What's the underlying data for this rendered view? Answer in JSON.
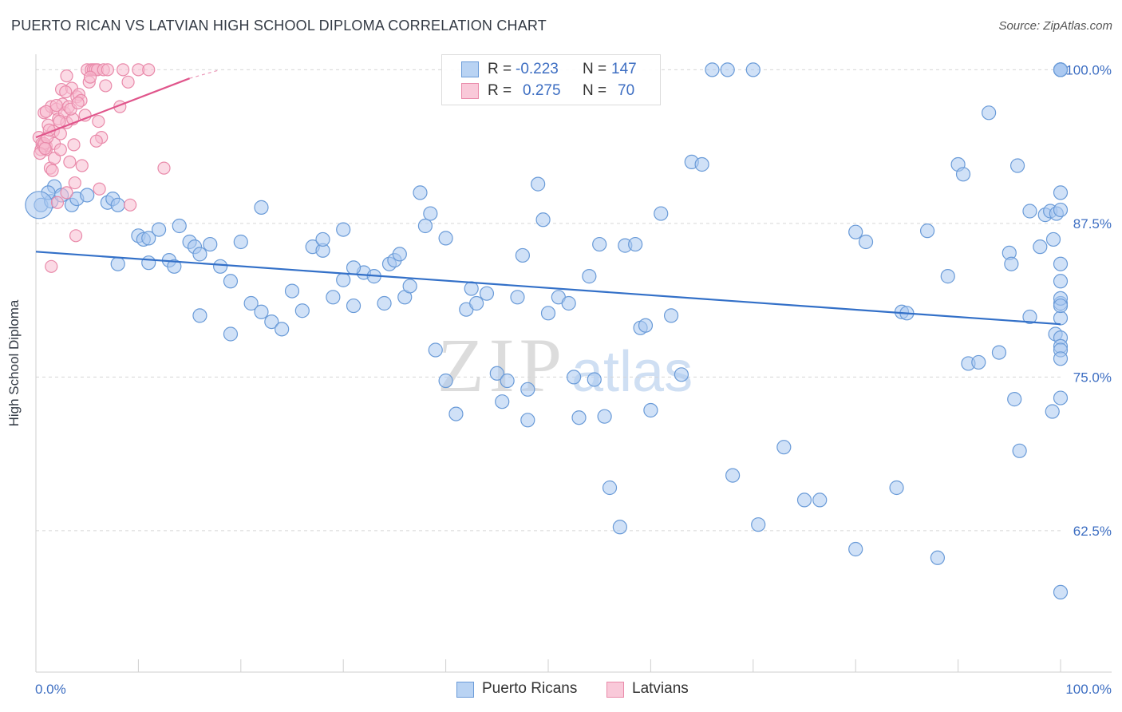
{
  "title": "PUERTO RICAN VS LATVIAN HIGH SCHOOL DIPLOMA CORRELATION CHART",
  "source": "Source: ZipAtlas.com",
  "watermark": {
    "zip": "ZIP",
    "atlas": "atlas"
  },
  "legend": {
    "rows": [
      {
        "r_label": "R =",
        "r_value": "-0.223",
        "n_label": "N =",
        "n_value": "147",
        "color": "#a9c8f0",
        "stroke": "#6a9bd8"
      },
      {
        "r_label": "R =",
        "r_value": "0.275",
        "n_label": "N =",
        "n_value": "70",
        "color": "#f7bcd0",
        "stroke": "#e98aaa"
      }
    ]
  },
  "bottom_legend": [
    {
      "label": "Puerto Ricans",
      "color": "#a9c8f0",
      "stroke": "#6a9bd8"
    },
    {
      "label": "Latvians",
      "color": "#f7bcd0",
      "stroke": "#e98aaa"
    }
  ],
  "chart_data": {
    "type": "scatter",
    "title": "PUERTO RICAN VS LATVIAN HIGH SCHOOL DIPLOMA CORRELATION CHART",
    "xlabel": "",
    "ylabel": "High School Diploma",
    "xlim": [
      0,
      100
    ],
    "ylim": [
      51,
      101
    ],
    "x_tick_labels": [
      "0.0%",
      "100.0%"
    ],
    "y_ticks": [
      100,
      87.5,
      75,
      62.5
    ],
    "y_tick_labels": [
      "100.0%",
      "87.5%",
      "75.0%",
      "62.5%"
    ],
    "grid": true,
    "series": [
      {
        "name": "Puerto Ricans",
        "color": "#a9c8f0",
        "stroke": "#6a9bd8",
        "trend": {
          "x": [
            0,
            100
          ],
          "y": [
            85.2,
            79.3
          ],
          "color": "#3370c8"
        },
        "points": [
          [
            0.5,
            89
          ],
          [
            1.5,
            89.3
          ],
          [
            1.8,
            90.5
          ],
          [
            3.5,
            89
          ],
          [
            4,
            89.5
          ],
          [
            5,
            89.8
          ],
          [
            7,
            89.2
          ],
          [
            7.5,
            89.5
          ],
          [
            8,
            89
          ],
          [
            1.2,
            90
          ],
          [
            2.5,
            89.8
          ],
          [
            10,
            86.5
          ],
          [
            10.5,
            86.2
          ],
          [
            11,
            86.3
          ],
          [
            12,
            87
          ],
          [
            14,
            87.3
          ],
          [
            15,
            86
          ],
          [
            15.5,
            85.6
          ],
          [
            16,
            85
          ],
          [
            11,
            84.3
          ],
          [
            13,
            84.5
          ],
          [
            13.5,
            84
          ],
          [
            8,
            84.2
          ],
          [
            17,
            85.8
          ],
          [
            18,
            84
          ],
          [
            19,
            82.8
          ],
          [
            16,
            80
          ],
          [
            19,
            78.5
          ],
          [
            20,
            86
          ],
          [
            21,
            81
          ],
          [
            22,
            80.3
          ],
          [
            23,
            79.5
          ],
          [
            24,
            78.9
          ],
          [
            25,
            82
          ],
          [
            26,
            80.4
          ],
          [
            27,
            85.6
          ],
          [
            28,
            85.3
          ],
          [
            28,
            86.2
          ],
          [
            29,
            81.5
          ],
          [
            30,
            82.9
          ],
          [
            31,
            80.8
          ],
          [
            32,
            83.5
          ],
          [
            33,
            83.2
          ],
          [
            34,
            81
          ],
          [
            34.5,
            84.2
          ],
          [
            35,
            84.5
          ],
          [
            35.5,
            85
          ],
          [
            36,
            81.5
          ],
          [
            36.5,
            82.4
          ],
          [
            38,
            87.3
          ],
          [
            38.5,
            88.3
          ],
          [
            37.5,
            90
          ],
          [
            30,
            87
          ],
          [
            31,
            83.9
          ],
          [
            22,
            88.8
          ],
          [
            40,
            86.3
          ],
          [
            39,
            77.2
          ],
          [
            40,
            74.7
          ],
          [
            41,
            72
          ],
          [
            42,
            80.5
          ],
          [
            42.5,
            82.2
          ],
          [
            43,
            81
          ],
          [
            44,
            81.8
          ],
          [
            45,
            75.3
          ],
          [
            45.5,
            73
          ],
          [
            46,
            74.7
          ],
          [
            47,
            81.5
          ],
          [
            47.5,
            84.9
          ],
          [
            48,
            71.5
          ],
          [
            48,
            74
          ],
          [
            49.5,
            87.8
          ],
          [
            49,
            90.7
          ],
          [
            50,
            80.2
          ],
          [
            51,
            81.5
          ],
          [
            52,
            81
          ],
          [
            52.5,
            75
          ],
          [
            53,
            71.7
          ],
          [
            54.5,
            74.8
          ],
          [
            54,
            83.2
          ],
          [
            55,
            85.8
          ],
          [
            56,
            66
          ],
          [
            55.5,
            71.8
          ],
          [
            57,
            62.8
          ],
          [
            57.5,
            85.7
          ],
          [
            58.5,
            85.8
          ],
          [
            59,
            79
          ],
          [
            59.5,
            79.2
          ],
          [
            60,
            72.3
          ],
          [
            61,
            88.3
          ],
          [
            62,
            80
          ],
          [
            63,
            75.2
          ],
          [
            64,
            92.5
          ],
          [
            65,
            92.3
          ],
          [
            66,
            100
          ],
          [
            67.5,
            100
          ],
          [
            70,
            100
          ],
          [
            68,
            67
          ],
          [
            70.5,
            63
          ],
          [
            73,
            69.3
          ],
          [
            75,
            65
          ],
          [
            76.5,
            65
          ],
          [
            80,
            61
          ],
          [
            80,
            86.8
          ],
          [
            81,
            86
          ],
          [
            84,
            66
          ],
          [
            84.5,
            80.3
          ],
          [
            85,
            80.2
          ],
          [
            87,
            86.9
          ],
          [
            88,
            60.3
          ],
          [
            89,
            83.2
          ],
          [
            90,
            92.3
          ],
          [
            90.5,
            91.5
          ],
          [
            91,
            76.1
          ],
          [
            92,
            76.2
          ],
          [
            93,
            96.5
          ],
          [
            94,
            77
          ],
          [
            95,
            85.1
          ],
          [
            95.2,
            84.2
          ],
          [
            95.5,
            73.2
          ],
          [
            95.8,
            92.2
          ],
          [
            96,
            69
          ],
          [
            97,
            79.9
          ],
          [
            98,
            85.6
          ],
          [
            98.5,
            88.2
          ],
          [
            99,
            88.5
          ],
          [
            99.3,
            86.2
          ],
          [
            99.5,
            78.5
          ],
          [
            97,
            88.5
          ],
          [
            99.2,
            72.2
          ],
          [
            99.6,
            88.3
          ],
          [
            100,
            90
          ],
          [
            100,
            100
          ],
          [
            100,
            100
          ],
          [
            100,
            100
          ],
          [
            100,
            100
          ],
          [
            100,
            100
          ],
          [
            100,
            57.5
          ],
          [
            100,
            88.6
          ],
          [
            100,
            82.8
          ],
          [
            100,
            81
          ],
          [
            100,
            81.4
          ],
          [
            100,
            79.8
          ],
          [
            100,
            80.8
          ],
          [
            100,
            78.2
          ],
          [
            100,
            84.2
          ],
          [
            100,
            77.5
          ],
          [
            100,
            77.2
          ],
          [
            100,
            76.5
          ],
          [
            100,
            73.3
          ]
        ]
      },
      {
        "name": "Latvians",
        "color": "#f7bcd0",
        "stroke": "#e98aaa",
        "trend": {
          "x": [
            0,
            15
          ],
          "y": [
            94.5,
            99.3
          ],
          "dash_to": [
            18,
            100
          ],
          "color": "#e0558b"
        },
        "points": [
          [
            0.3,
            94.5
          ],
          [
            0.5,
            93.5
          ],
          [
            0.6,
            94
          ],
          [
            0.8,
            96.5
          ],
          [
            1,
            93.5
          ],
          [
            1,
            93.8
          ],
          [
            1.2,
            95.5
          ],
          [
            1.4,
            92
          ],
          [
            1.5,
            97
          ],
          [
            1.7,
            95
          ],
          [
            1.8,
            94
          ],
          [
            2,
            96.8
          ],
          [
            2.2,
            96
          ],
          [
            2.4,
            94.8
          ],
          [
            2.5,
            98.4
          ],
          [
            2.6,
            97.2
          ],
          [
            2.8,
            96.5
          ],
          [
            3,
            95.7
          ],
          [
            3,
            99.5
          ],
          [
            3.2,
            97
          ],
          [
            3.3,
            92.5
          ],
          [
            3.5,
            98.5
          ],
          [
            3.6,
            96
          ],
          [
            3.8,
            90.8
          ],
          [
            4,
            97.8
          ],
          [
            4.2,
            98
          ],
          [
            4.4,
            97.5
          ],
          [
            4.5,
            92.2
          ],
          [
            5,
            100
          ],
          [
            5.2,
            99
          ],
          [
            5.4,
            100
          ],
          [
            5.6,
            100
          ],
          [
            5.8,
            100
          ],
          [
            6,
            100
          ],
          [
            6.1,
            95.8
          ],
          [
            6.2,
            90.3
          ],
          [
            6.4,
            94.5
          ],
          [
            6.6,
            100
          ],
          [
            6.8,
            98.7
          ],
          [
            7,
            100
          ],
          [
            8.2,
            97
          ],
          [
            8.5,
            100
          ],
          [
            9,
            99
          ],
          [
            10,
            100
          ],
          [
            11,
            100
          ],
          [
            12.5,
            92
          ],
          [
            1,
            96.6
          ],
          [
            1.8,
            92.8
          ],
          [
            2.4,
            93.5
          ],
          [
            3.9,
            86.5
          ],
          [
            1.5,
            84
          ],
          [
            3,
            90
          ],
          [
            0.7,
            93.8
          ],
          [
            1.6,
            91.8
          ],
          [
            5.3,
            99.4
          ],
          [
            0.8,
            94
          ],
          [
            0.4,
            93.2
          ],
          [
            2,
            97.1
          ],
          [
            4.8,
            96.3
          ],
          [
            1.1,
            94.5
          ],
          [
            2.9,
            98.2
          ],
          [
            1.3,
            95.1
          ],
          [
            3.4,
            96.8
          ],
          [
            0.9,
            93.6
          ],
          [
            2.1,
            89.2
          ],
          [
            5.9,
            94.2
          ],
          [
            9.2,
            89
          ],
          [
            4.1,
            97.3
          ],
          [
            3.7,
            93.9
          ],
          [
            2.3,
            95.8
          ]
        ]
      }
    ]
  }
}
